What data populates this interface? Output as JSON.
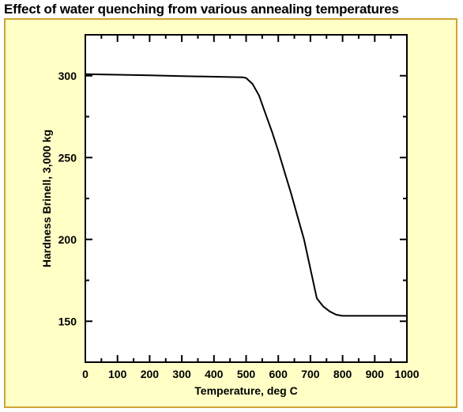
{
  "title": "Effect of water quenching from various annealing temperatures",
  "colors": {
    "panel_bg": "#ffffc6",
    "panel_border": "#cda434",
    "plot_bg": "#ffffff",
    "line": "#000000"
  },
  "chart_data": {
    "type": "line",
    "xlabel": "Temperature, deg C",
    "ylabel": "Hardness Brinell, 3,000 kg",
    "xlim": [
      0,
      1000
    ],
    "ylim": [
      125,
      325
    ],
    "xticks": [
      0,
      100,
      200,
      300,
      400,
      500,
      600,
      700,
      800,
      900,
      1000
    ],
    "xtick_labels": [
      "0",
      "100",
      "200",
      "300",
      "400",
      "500",
      "600",
      "700",
      "800",
      "900",
      "1000"
    ],
    "yticks": [
      150,
      200,
      250,
      300
    ],
    "ytick_labels": [
      "150",
      "200",
      "250",
      "300"
    ],
    "grid": false,
    "series": [
      {
        "x": [
          0,
          100,
          200,
          300,
          400,
          490,
          500,
          520,
          540,
          560,
          580,
          600,
          620,
          640,
          660,
          680,
          700,
          720,
          740,
          760,
          780,
          800,
          850,
          900,
          950,
          1000
        ],
        "y": [
          301,
          300.6,
          300.2,
          299.8,
          299.4,
          299,
          298.6,
          295,
          288,
          277,
          266,
          254,
          241,
          228,
          214,
          200,
          182,
          164,
          159,
          156,
          154,
          153.3,
          153.3,
          153.3,
          153.3,
          153.3
        ]
      }
    ]
  }
}
